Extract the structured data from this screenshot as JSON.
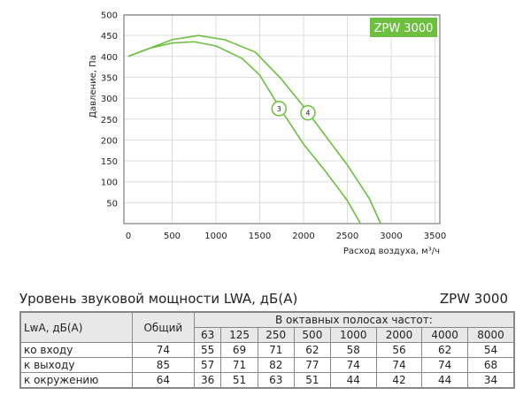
{
  "chart_data": {
    "type": "line",
    "title": "ZPW 3000",
    "xlabel": "Расход воздуха, м³/ч",
    "ylabel": "Давление, Па",
    "xlim": [
      0,
      3500
    ],
    "ylim": [
      0,
      500
    ],
    "xticks": [
      0,
      500,
      1000,
      1500,
      2000,
      2500,
      3000,
      3500
    ],
    "yticks": [
      50,
      100,
      150,
      200,
      250,
      300,
      350,
      400,
      450,
      500
    ],
    "grid": true,
    "color": "#6cbf3f",
    "series": [
      {
        "name": "3",
        "x": [
          0,
          250,
          500,
          750,
          1000,
          1300,
          1500,
          1750,
          2000,
          2250,
          2500,
          2650
        ],
        "y": [
          400,
          420,
          432,
          435,
          425,
          395,
          355,
          270,
          190,
          125,
          55,
          0
        ],
        "label_at": [
          1720,
          275
        ]
      },
      {
        "name": "4",
        "x": [
          0,
          500,
          800,
          1100,
          1450,
          1750,
          2000,
          2250,
          2500,
          2750,
          2880
        ],
        "y": [
          400,
          440,
          450,
          440,
          410,
          345,
          280,
          210,
          140,
          60,
          0
        ],
        "label_at": [
          2050,
          265
        ]
      }
    ]
  },
  "table": {
    "title": "Уровень звуковой мощности LWA, дБ(A)",
    "model": "ZPW 3000",
    "h_label": "LwA, дБ(A)",
    "h_total": "Общий",
    "h_bands": "В октавных полосах частот:",
    "bands": [
      "63",
      "125",
      "250",
      "500",
      "1000",
      "2000",
      "4000",
      "8000"
    ],
    "rows": [
      {
        "label": "ко входу",
        "total": "74",
        "values": [
          "55",
          "69",
          "71",
          "62",
          "58",
          "56",
          "62",
          "54"
        ]
      },
      {
        "label": "к выходу",
        "total": "85",
        "values": [
          "57",
          "71",
          "82",
          "77",
          "74",
          "74",
          "74",
          "68"
        ]
      },
      {
        "label": "к окружению",
        "total": "64",
        "values": [
          "36",
          "51",
          "63",
          "51",
          "44",
          "42",
          "44",
          "34"
        ]
      }
    ]
  }
}
